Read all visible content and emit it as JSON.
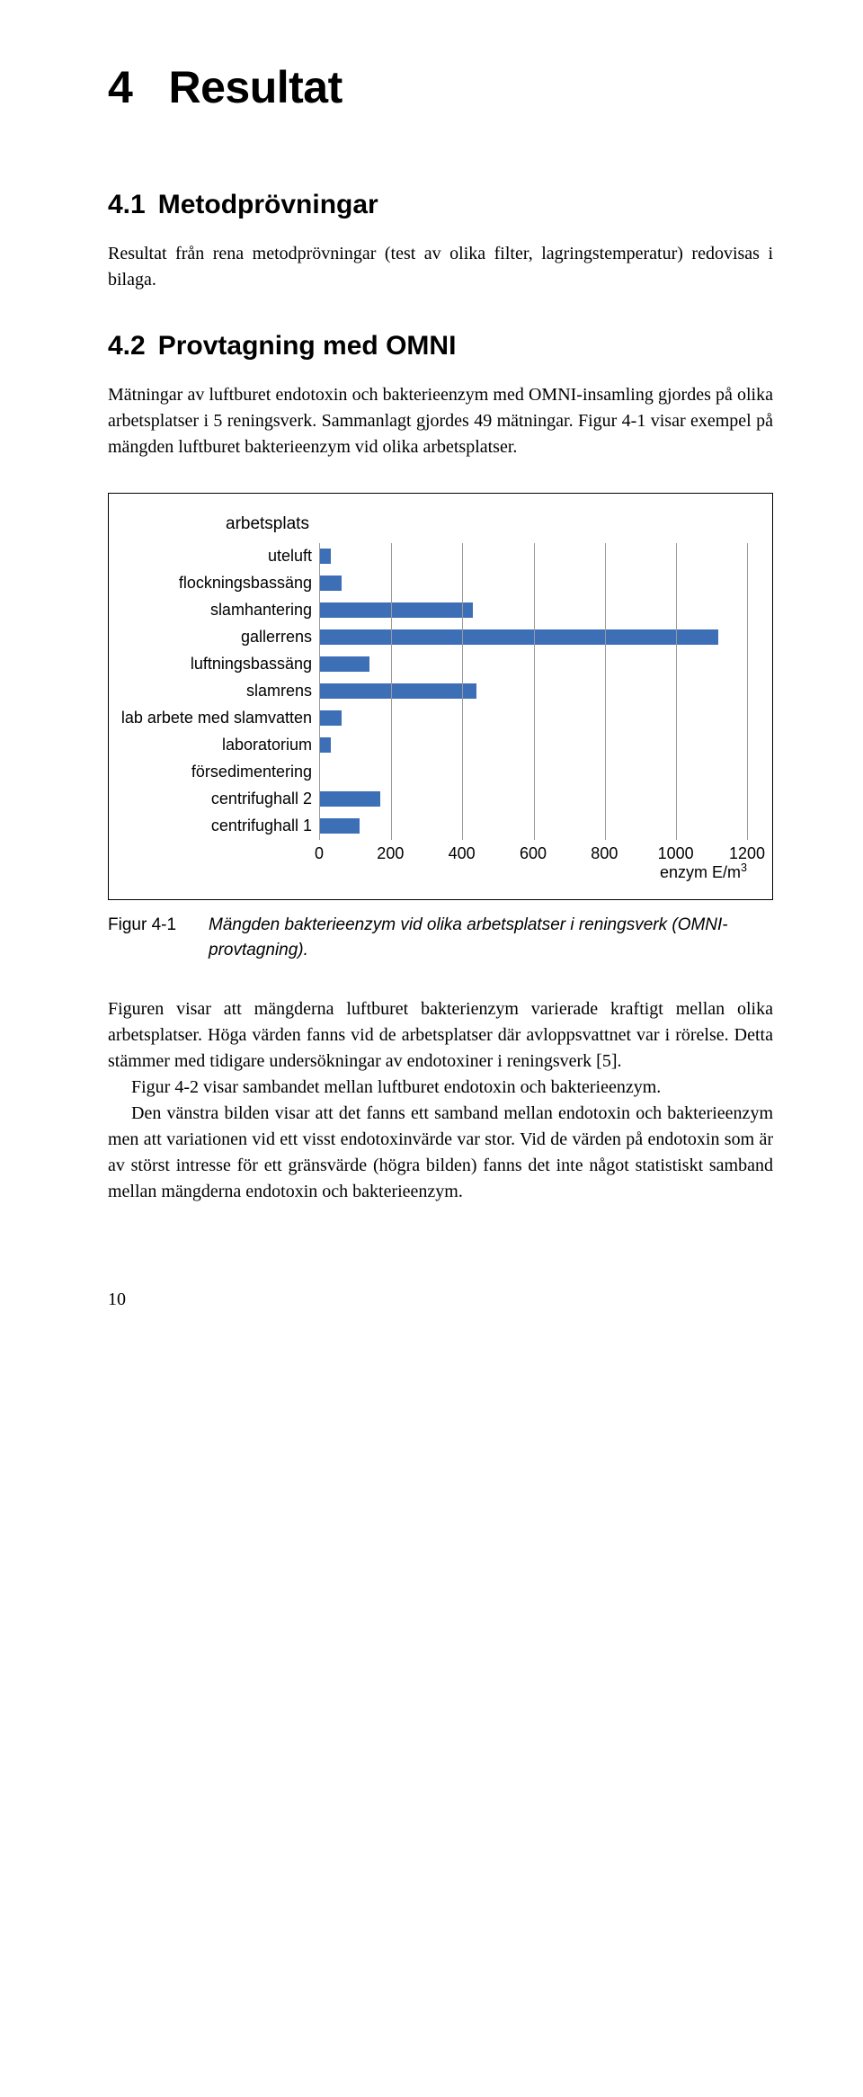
{
  "heading1": {
    "num": "4",
    "text": "Resultat"
  },
  "sec41": {
    "num": "4.1",
    "title": "Metodprövningar",
    "para": "Resultat från rena metodprövningar (test av olika filter, lagringstemperatur) redovisas i bilaga."
  },
  "sec42": {
    "num": "4.2",
    "title": "Provtagning med OMNI",
    "para": "Mätningar av luftburet endotoxin och bakterieenzym med OMNI-insamling gjordes på olika arbetsplatser i 5 reningsverk. Sammanlagt gjordes 49 mätningar. Figur 4-1 visar exempel på mängden luftburet bakterieenzym vid olika arbetsplatser."
  },
  "chart": {
    "title": "arbetsplats",
    "bar_color": "#3d6fb6",
    "grid_color": "#9a9a9a",
    "xmax": 1200,
    "xtick_step": 200,
    "xticks": [
      "0",
      "200",
      "400",
      "600",
      "800",
      "1000",
      "1200"
    ],
    "unit": "enzym E/m³",
    "rows": [
      {
        "label": "uteluft",
        "value": 30
      },
      {
        "label": "flockningsbassäng",
        "value": 60
      },
      {
        "label": "slamhantering",
        "value": 430
      },
      {
        "label": "gallerrens",
        "value": 1120
      },
      {
        "label": "luftningsbassäng",
        "value": 140
      },
      {
        "label": "slamrens",
        "value": 440
      },
      {
        "label": "lab arbete med slamvatten",
        "value": 60
      },
      {
        "label": "laboratorium",
        "value": 30
      },
      {
        "label": "försedimentering",
        "value": 0
      },
      {
        "label": "centrifughall 2",
        "value": 170
      },
      {
        "label": "centrifughall 1",
        "value": 110
      }
    ]
  },
  "caption": {
    "label": "Figur 4-1",
    "text": "Mängden bakterieenzym vid olika arbetsplatser i reningsverk (OMNI-provtagning)."
  },
  "body": {
    "p1": "Figuren visar att mängderna luftburet bakterienzym varierade kraftigt mellan olika arbetsplatser. Höga värden fanns vid de arbetsplatser där avloppsvattnet var i rörelse. Detta stämmer med tidigare undersökningar av endotoxiner i reningsverk [5].",
    "p2": "Figur 4-2 visar sambandet mellan luftburet endotoxin och bakterieenzym.",
    "p3": "Den vänstra bilden visar att det fanns ett samband mellan endotoxin och bakterieenzym men att variationen vid ett visst endotoxinvärde var stor. Vid de värden på endotoxin som är av störst intresse för ett gränsvärde (högra bilden) fanns det inte något statistiskt samband mellan mängderna endotoxin och bakterieenzym."
  },
  "page_number": "10"
}
